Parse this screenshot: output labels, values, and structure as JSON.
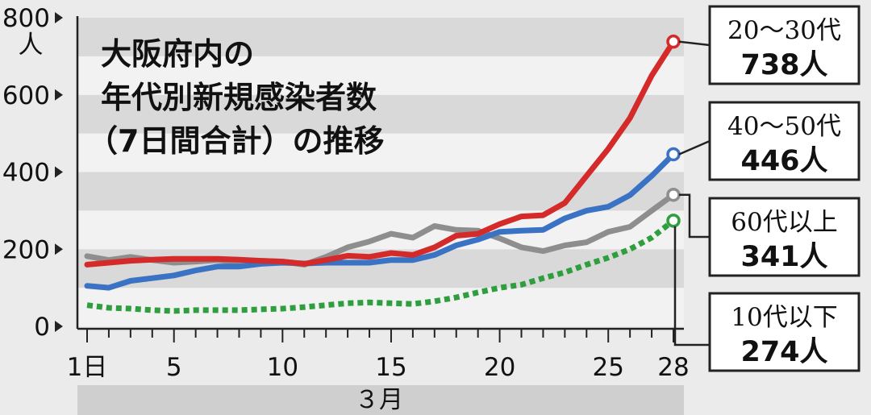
{
  "chart_data": {
    "type": "line",
    "title_lines": [
      "大阪府内の",
      "年代別新規感染者数",
      "（7日間合計）の推移"
    ],
    "ylabel": "人",
    "xlabel": "３月",
    "ylim": [
      0,
      800
    ],
    "yticks": [
      "0",
      "200",
      "400",
      "600",
      "800"
    ],
    "xlim": [
      1,
      28
    ],
    "xticks": [
      {
        "x": 1,
        "label": "1日"
      },
      {
        "x": 5,
        "label": "5"
      },
      {
        "x": 10,
        "label": "10"
      },
      {
        "x": 15,
        "label": "15"
      },
      {
        "x": 20,
        "label": "20"
      },
      {
        "x": 25,
        "label": "25"
      },
      {
        "x": 28,
        "label": "28"
      }
    ],
    "x": [
      1,
      2,
      3,
      4,
      5,
      6,
      7,
      8,
      9,
      10,
      11,
      12,
      13,
      14,
      15,
      16,
      17,
      18,
      19,
      20,
      21,
      22,
      23,
      24,
      25,
      26,
      27,
      28
    ],
    "series": [
      {
        "name": "20～30代",
        "color": "#d42a2a",
        "dash": false,
        "end_value_label": "738人",
        "values": [
          160,
          165,
          170,
          173,
          175,
          175,
          175,
          173,
          170,
          168,
          162,
          172,
          183,
          180,
          190,
          185,
          205,
          235,
          240,
          265,
          285,
          288,
          320,
          390,
          460,
          540,
          650,
          738
        ]
      },
      {
        "name": "40～50代",
        "color": "#3a72c4",
        "dash": false,
        "end_value_label": "446人",
        "values": [
          105,
          100,
          118,
          125,
          132,
          145,
          155,
          155,
          162,
          165,
          163,
          165,
          165,
          165,
          172,
          172,
          185,
          210,
          225,
          245,
          248,
          250,
          280,
          300,
          310,
          340,
          390,
          446
        ]
      },
      {
        "name": "60代以上",
        "color": "#8e8e8e",
        "dash": false,
        "end_value_label": "341人",
        "values": [
          182,
          172,
          180,
          172,
          165,
          168,
          172,
          165,
          170,
          168,
          160,
          180,
          205,
          220,
          240,
          230,
          260,
          250,
          248,
          228,
          205,
          195,
          210,
          218,
          245,
          258,
          300,
          341
        ]
      },
      {
        "name": "10代以下",
        "color": "#2e9e3e",
        "dash": true,
        "end_value_label": "274人",
        "values": [
          55,
          48,
          46,
          42,
          40,
          42,
          42,
          42,
          44,
          46,
          50,
          55,
          60,
          62,
          60,
          58,
          65,
          75,
          88,
          100,
          108,
          125,
          140,
          160,
          178,
          200,
          230,
          274
        ]
      }
    ]
  }
}
